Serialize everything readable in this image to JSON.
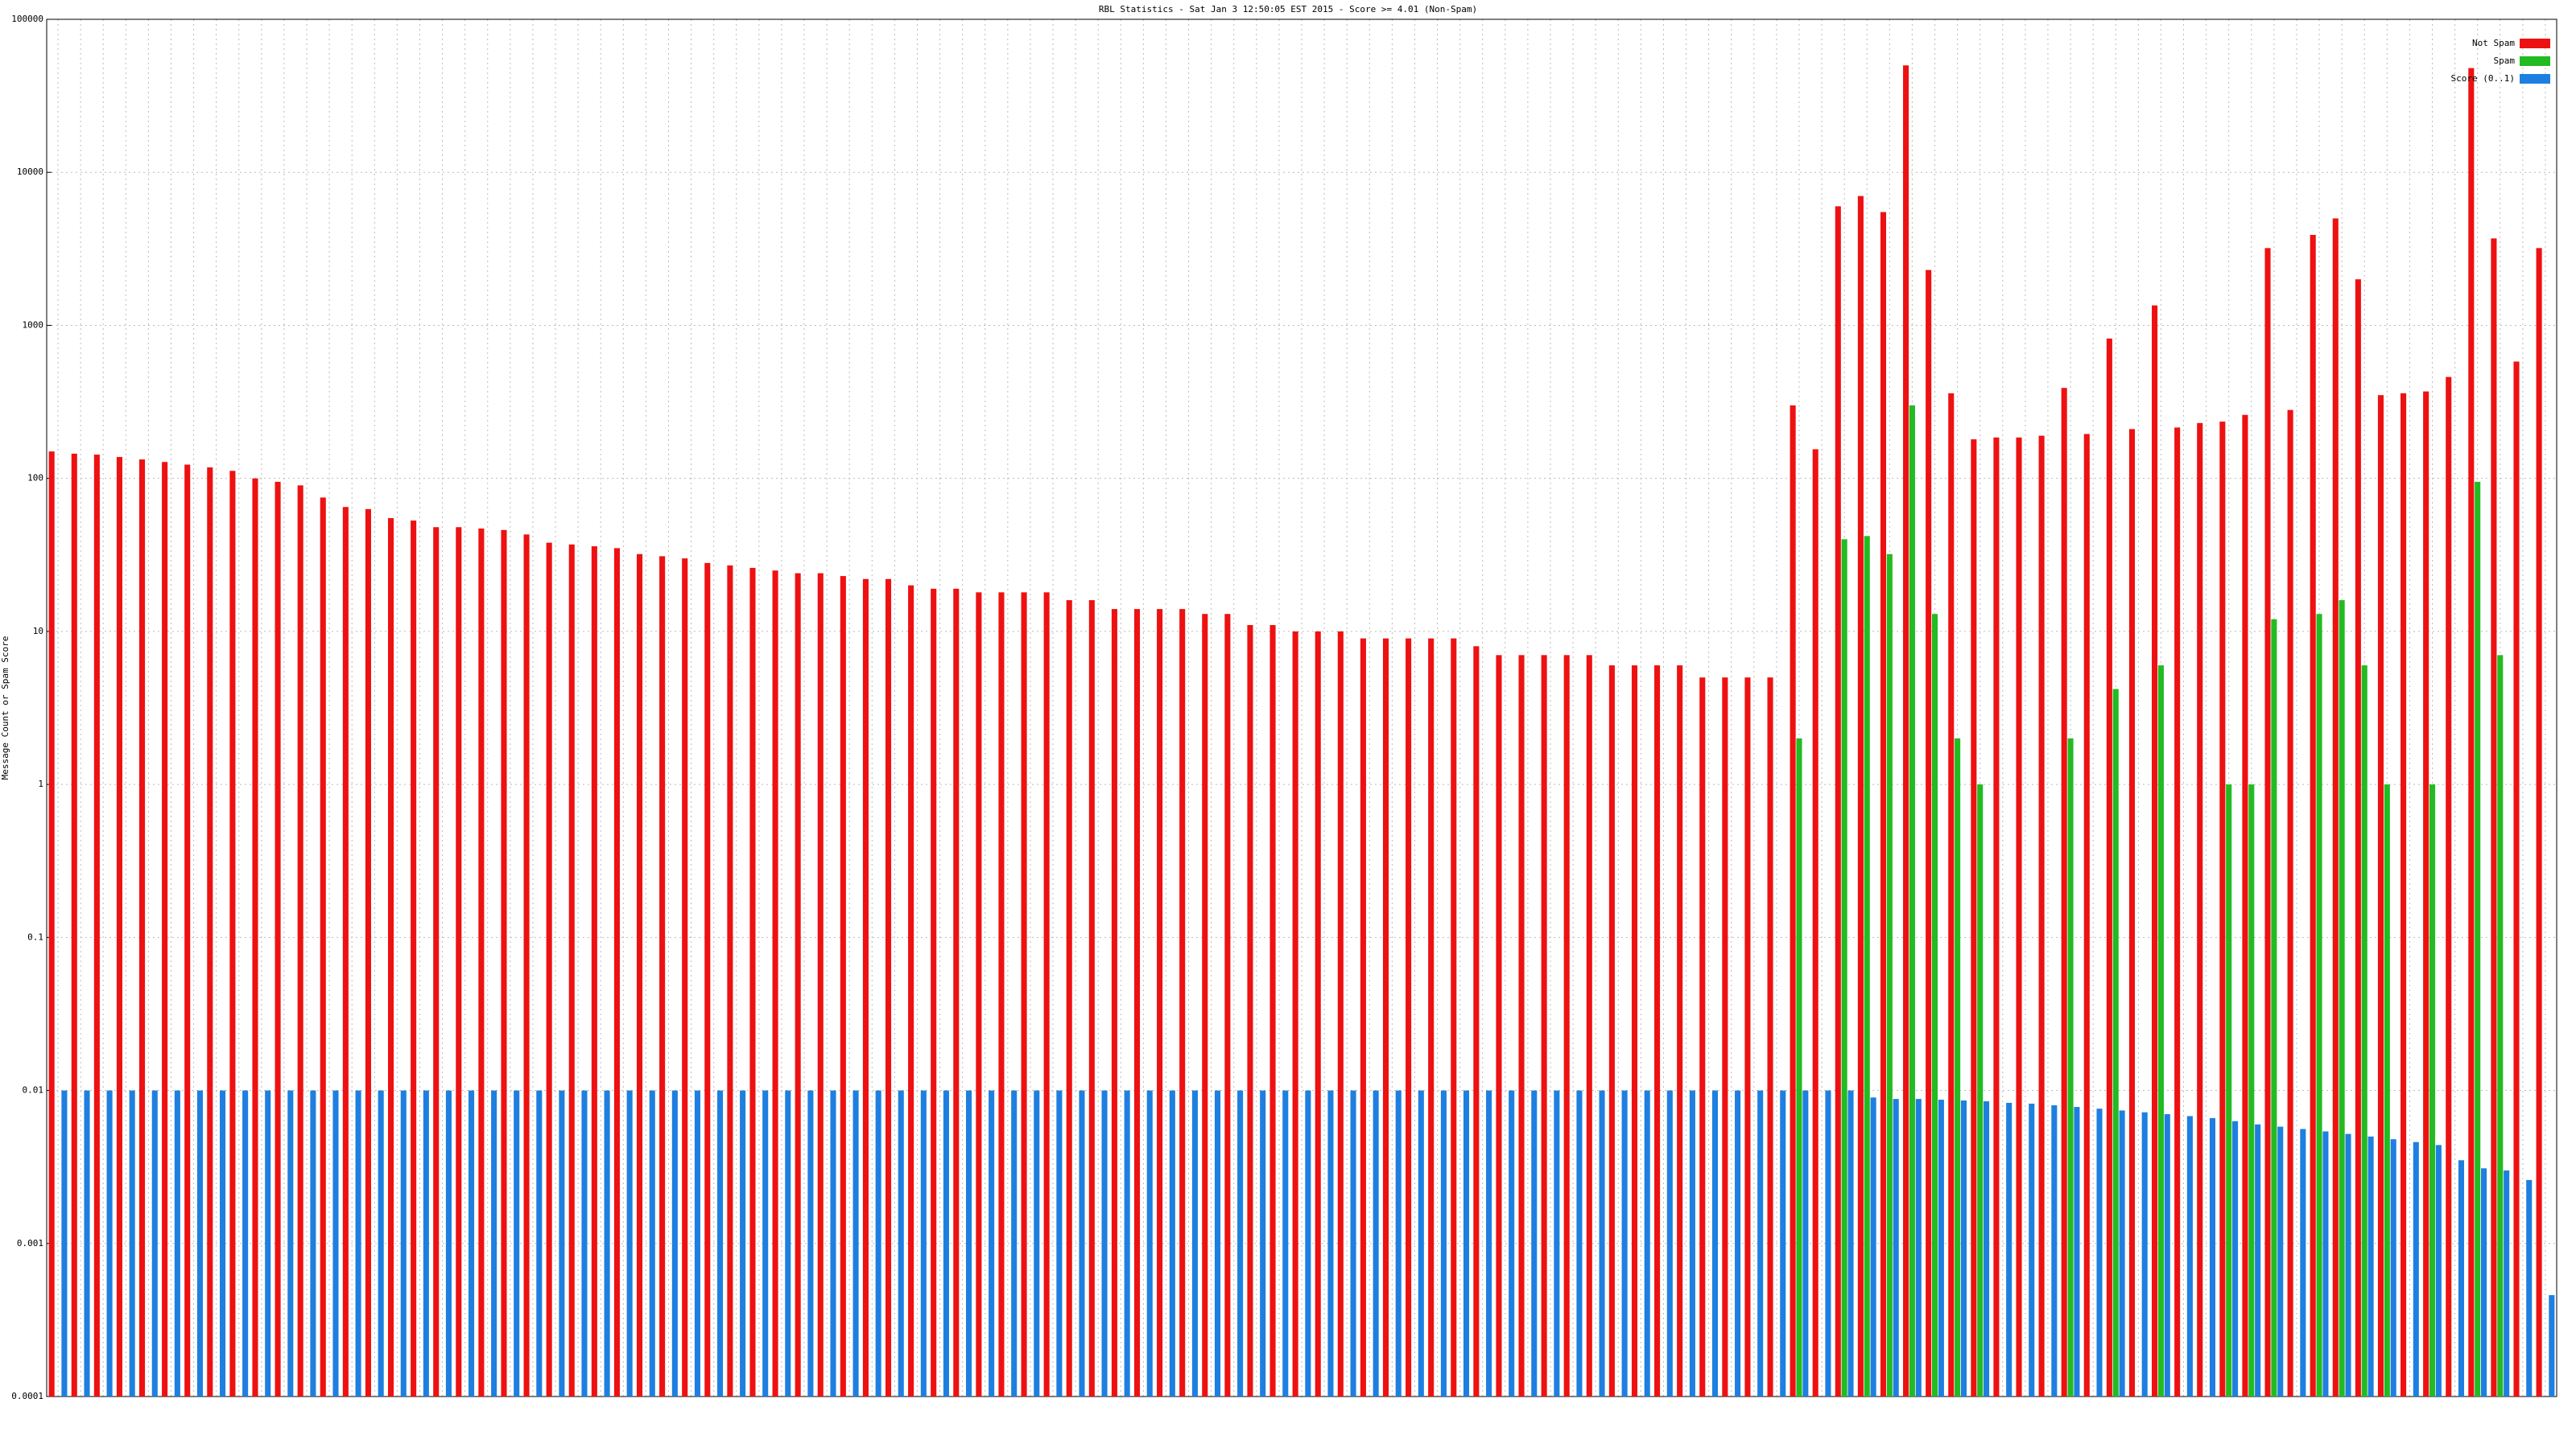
{
  "chart_data": {
    "type": "bar",
    "title": "RBL Statistics - Sat Jan  3 12:50:05 EST 2015 - Score >= 4.01 (Non-Spam)",
    "y_label": "Message Count or Spam Score",
    "log_scale": true,
    "grid": true,
    "legend": "top-right",
    "ylim": [
      0.0001,
      100000
    ],
    "yticks": [
      0.0001,
      0.001,
      0.01,
      0.1,
      1,
      10,
      100,
      1000,
      10000,
      100000
    ],
    "categories": [
      null,
      null,
      null,
      null,
      null,
      null,
      null,
      null,
      null,
      null,
      null,
      null,
      null,
      null,
      null,
      null,
      null,
      null,
      null,
      null,
      null,
      null,
      null,
      null,
      null,
      null,
      null,
      null,
      null,
      null,
      null,
      null,
      null,
      null,
      null,
      null,
      null,
      null,
      null,
      null,
      null,
      null,
      null,
      null,
      null,
      null,
      null,
      null,
      null,
      null,
      null,
      null,
      null,
      null,
      null,
      null,
      null,
      null,
      null,
      null,
      null,
      null,
      null,
      null,
      null,
      null,
      null,
      null,
      null,
      null,
      null,
      null,
      null,
      null,
      null,
      null,
      null,
      null,
      null,
      null,
      null,
      null,
      null,
      null,
      null,
      null,
      null,
      null,
      null,
      null,
      null,
      null,
      null,
      null,
      null,
      null,
      null,
      null,
      null,
      null,
      null,
      null,
      null,
      null,
      null,
      null,
      null,
      null,
      null,
      null,
      null
    ],
    "series": [
      {
        "name": "Not Spam",
        "color": "#ee1111",
        "values": [
          150,
          145,
          143,
          138,
          133,
          128,
          123,
          118,
          112,
          100,
          95,
          90,
          75,
          65,
          63,
          55,
          53,
          48,
          48,
          47,
          46,
          43,
          38,
          37,
          36,
          35,
          32,
          31,
          30,
          28,
          27,
          26,
          25,
          24,
          24,
          23,
          22,
          22,
          20,
          19,
          19,
          18,
          18,
          18,
          18,
          16,
          16,
          14,
          14,
          14,
          14,
          13,
          13,
          11,
          11,
          10,
          10,
          10,
          9,
          9,
          9,
          9,
          9,
          8,
          7,
          7,
          7,
          7,
          7,
          6,
          6,
          6,
          6,
          5,
          5,
          5,
          5,
          300,
          155,
          6000,
          7000,
          5500,
          50000,
          2300,
          360,
          180,
          185,
          185,
          190,
          390,
          195,
          820,
          210,
          1350,
          215,
          230,
          235,
          260,
          3200,
          280,
          3900,
          5000,
          2000,
          350,
          360,
          370,
          460,
          48000,
          3700,
          580,
          3200
        ]
      },
      {
        "name": "Spam",
        "color": "#22bb22",
        "values": [
          null,
          null,
          null,
          null,
          null,
          null,
          null,
          null,
          null,
          null,
          null,
          null,
          null,
          null,
          null,
          null,
          null,
          null,
          null,
          null,
          null,
          null,
          null,
          null,
          null,
          null,
          null,
          null,
          null,
          null,
          null,
          null,
          null,
          null,
          null,
          null,
          null,
          null,
          null,
          null,
          null,
          null,
          null,
          null,
          null,
          null,
          null,
          null,
          null,
          null,
          null,
          null,
          null,
          null,
          null,
          null,
          null,
          null,
          null,
          null,
          null,
          null,
          null,
          null,
          null,
          null,
          null,
          null,
          null,
          null,
          null,
          null,
          null,
          null,
          null,
          null,
          null,
          2,
          null,
          40,
          42,
          32,
          300,
          13,
          2,
          1,
          null,
          null,
          null,
          2,
          null,
          4.2,
          null,
          6,
          null,
          null,
          1,
          1,
          12,
          null,
          13,
          16,
          6,
          1,
          null,
          1,
          null,
          95,
          7,
          null,
          null
        ]
      },
      {
        "name": "Score (0..1)",
        "color": "#1e7fe0",
        "values": [
          0.01,
          0.01,
          0.01,
          0.01,
          0.01,
          0.01,
          0.01,
          0.01,
          0.01,
          0.01,
          0.01,
          0.01,
          0.01,
          0.01,
          0.01,
          0.01,
          0.01,
          0.01,
          0.01,
          0.01,
          0.01,
          0.01,
          0.01,
          0.01,
          0.01,
          0.01,
          0.01,
          0.01,
          0.01,
          0.01,
          0.01,
          0.01,
          0.01,
          0.01,
          0.01,
          0.01,
          0.01,
          0.01,
          0.01,
          0.01,
          0.01,
          0.01,
          0.01,
          0.01,
          0.01,
          0.01,
          0.01,
          0.01,
          0.01,
          0.01,
          0.01,
          0.01,
          0.01,
          0.01,
          0.01,
          0.01,
          0.01,
          0.01,
          0.01,
          0.01,
          0.01,
          0.01,
          0.01,
          0.01,
          0.01,
          0.01,
          0.01,
          0.01,
          0.01,
          0.01,
          0.01,
          0.01,
          0.01,
          0.01,
          0.01,
          0.01,
          0.01,
          0.01,
          0.01,
          0.01,
          0.009,
          0.0088,
          0.0088,
          0.0087,
          0.0086,
          0.0085,
          0.0083,
          0.0082,
          0.008,
          0.0078,
          0.0076,
          0.0074,
          0.0072,
          0.007,
          0.0068,
          0.0066,
          0.0063,
          0.006,
          0.0058,
          0.0056,
          0.0054,
          0.0052,
          0.005,
          0.0048,
          0.0046,
          0.0044,
          0.0035,
          0.0031,
          0.003,
          0.0026,
          0.00046
        ]
      }
    ]
  }
}
